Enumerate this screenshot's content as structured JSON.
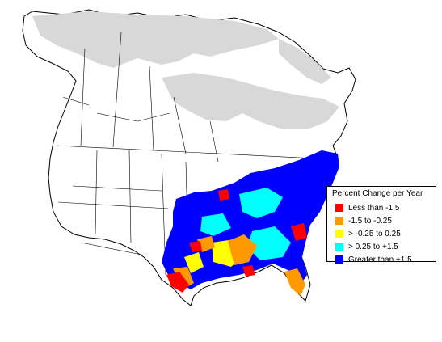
{
  "legend": {
    "title": "Percent Change per Year",
    "items": [
      {
        "label": "Less than -1.5",
        "color": "#ff0000"
      },
      {
        "label": "-1.5 to -0.25",
        "color": "#ff9900"
      },
      {
        "label": "> -0.25 to 0.25",
        "color": "#ffff00"
      },
      {
        "label": "> 0.25 to +1.5",
        "color": "#00ffff"
      },
      {
        "label": "Greater than +1.5",
        "color": "#0000ff"
      }
    ]
  },
  "colors": {
    "no_data_region": "#d8d8d8",
    "land": "#ffffff",
    "boundary": "#000000"
  }
}
